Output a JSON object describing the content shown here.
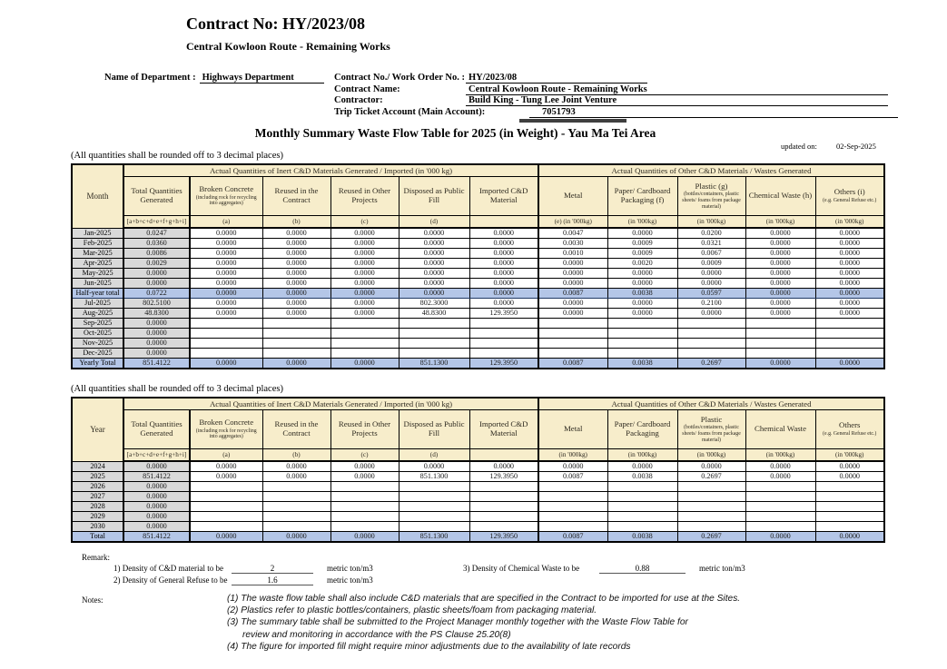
{
  "page": {
    "contract_title": "Contract No: HY/2023/08",
    "contract_subtitle": "Central Kowloon Route - Remaining Works",
    "main_title": "Monthly Summary Waste Flow Table for 2025 (in Weight) - Yau Ma Tei Area",
    "updated_on_label": "updated on:",
    "updated_on_value": "02-Sep-2025",
    "rounding_note": "(All quantities shall be rounded off to 3 decimal places)"
  },
  "form": {
    "department_label": "Name of Department :",
    "department_value": "Highways Department",
    "contract_no_label": "Contract No./ Work Order No. :",
    "contract_no_value": "HY/2023/08",
    "contract_name_label": "Contract Name:",
    "contract_name_value": "Central Kowloon Route - Remaining Works",
    "contractor_label": "Contractor:",
    "contractor_value": "Build King - Tung Lee Joint Venture",
    "trip_ticket_label": "Trip Ticket Account (Main Account):",
    "trip_ticket_value": "7051793"
  },
  "colors": {
    "header_fill": "#F7EDCB",
    "label_fill": "#D9D9D9",
    "total_fill": "#B4C6E7",
    "total_border": "#1F3864",
    "trip_bar": "#3f3f3f"
  },
  "table1": {
    "row_header": "Month",
    "group1": "Actual Quantities of Inert C&D Materials Generated / Imported (in '000 kg)",
    "group2": "Actual Quantities of Other C&D Materials / Wastes Generated",
    "columns": [
      {
        "title": "Total Quantities Generated",
        "foot": "[a+b+c+d+e+f+g+h+i]"
      },
      {
        "title": "Broken Concrete",
        "small": "(including rock for recycling into aggregates)",
        "foot": "(a)"
      },
      {
        "title": "Reused in the Contract",
        "foot": "(b)"
      },
      {
        "title": "Reused in Other Projects",
        "foot": "(c)"
      },
      {
        "title": "Disposed as Public Fill",
        "foot": "(d)"
      },
      {
        "title": "Imported C&D Material",
        "foot": ""
      },
      {
        "title": "Metal",
        "foot": "(e)  (in '000kg)"
      },
      {
        "title": "Paper/ Cardboard Packaging  (f)",
        "foot": "(in '000kg)"
      },
      {
        "title": "Plastic  (g)",
        "small": "(bottles/containers, plastic sheets/ foams from package material)",
        "foot": "(in '000kg)"
      },
      {
        "title": "Chemical Waste (h)",
        "foot": "(in '000kg)"
      },
      {
        "title": "Others (i)",
        "small": "(e.g. General Refuse etc.)",
        "foot": "(in '000kg)"
      }
    ],
    "rows": [
      {
        "label": "Jan-2025",
        "values": [
          "0.0247",
          "0.0000",
          "0.0000",
          "0.0000",
          "0.0000",
          "0.0000",
          "0.0047",
          "0.0000",
          "0.0200",
          "0.0000",
          "0.0000"
        ]
      },
      {
        "label": "Feb-2025",
        "values": [
          "0.0360",
          "0.0000",
          "0.0000",
          "0.0000",
          "0.0000",
          "0.0000",
          "0.0030",
          "0.0009",
          "0.0321",
          "0.0000",
          "0.0000"
        ]
      },
      {
        "label": "Mar-2025",
        "values": [
          "0.0086",
          "0.0000",
          "0.0000",
          "0.0000",
          "0.0000",
          "0.0000",
          "0.0010",
          "0.0009",
          "0.0067",
          "0.0000",
          "0.0000"
        ]
      },
      {
        "label": "Apr-2025",
        "values": [
          "0.0029",
          "0.0000",
          "0.0000",
          "0.0000",
          "0.0000",
          "0.0000",
          "0.0000",
          "0.0020",
          "0.0009",
          "0.0000",
          "0.0000"
        ]
      },
      {
        "label": "May-2025",
        "values": [
          "0.0000",
          "0.0000",
          "0.0000",
          "0.0000",
          "0.0000",
          "0.0000",
          "0.0000",
          "0.0000",
          "0.0000",
          "0.0000",
          "0.0000"
        ]
      },
      {
        "label": "Jun-2025",
        "values": [
          "0.0000",
          "0.0000",
          "0.0000",
          "0.0000",
          "0.0000",
          "0.0000",
          "0.0000",
          "0.0000",
          "0.0000",
          "0.0000",
          "0.0000"
        ]
      },
      {
        "label": "Half-year total",
        "total": true,
        "values": [
          "0.0722",
          "0.0000",
          "0.0000",
          "0.0000",
          "0.0000",
          "0.0000",
          "0.0087",
          "0.0038",
          "0.0597",
          "0.0000",
          "0.0000"
        ]
      },
      {
        "label": "Jul-2025",
        "values": [
          "802.5100",
          "0.0000",
          "0.0000",
          "0.0000",
          "802.3000",
          "0.0000",
          "0.0000",
          "0.0000",
          "0.2100",
          "0.0000",
          "0.0000"
        ]
      },
      {
        "label": "Aug-2025",
        "values": [
          "48.8300",
          "0.0000",
          "0.0000",
          "0.0000",
          "48.8300",
          "129.3950",
          "0.0000",
          "0.0000",
          "0.0000",
          "0.0000",
          "0.0000"
        ]
      },
      {
        "label": "Sep-2025",
        "values": [
          "0.0000",
          "",
          "",
          "",
          "",
          "",
          "",
          "",
          "",
          "",
          ""
        ]
      },
      {
        "label": "Oct-2025",
        "values": [
          "0.0000",
          "",
          "",
          "",
          "",
          "",
          "",
          "",
          "",
          "",
          ""
        ]
      },
      {
        "label": "Nov-2025",
        "values": [
          "0.0000",
          "",
          "",
          "",
          "",
          "",
          "",
          "",
          "",
          "",
          ""
        ]
      },
      {
        "label": "Dec-2025",
        "values": [
          "0.0000",
          "",
          "",
          "",
          "",
          "",
          "",
          "",
          "",
          "",
          ""
        ]
      },
      {
        "label": "Yearly Total",
        "total": true,
        "values": [
          "851.4122",
          "0.0000",
          "0.0000",
          "0.0000",
          "851.1300",
          "129.3950",
          "0.0087",
          "0.0038",
          "0.2697",
          "0.0000",
          "0.0000"
        ]
      }
    ]
  },
  "table2": {
    "row_header": "Year",
    "group1": "Actual Quantities of Inert C&D Materials Generated / Imported (in '000 kg)",
    "group2": "Actual Quantities of Other C&D Materials / Wastes Generated",
    "columns": [
      {
        "title": "Total Quantities Generated",
        "foot": "[a+b+c+d+e+f+g+h+i]"
      },
      {
        "title": "Broken Concrete",
        "small": "(including rock for recycling into aggregates)",
        "foot": "(a)"
      },
      {
        "title": "Reused in the Contract",
        "foot": "(b)"
      },
      {
        "title": "Reused in Other Projects",
        "foot": "(c)"
      },
      {
        "title": "Disposed as Public Fill",
        "foot": "(d)"
      },
      {
        "title": "Imported C&D Material",
        "foot": ""
      },
      {
        "title": "Metal",
        "foot": "(in '000kg)"
      },
      {
        "title": "Paper/ Cardboard Packaging",
        "foot": "(in '000kg)"
      },
      {
        "title": "Plastic",
        "small": "(bottles/containers, plastic sheets/ foams from package material)",
        "foot": "(in '000kg)"
      },
      {
        "title": "Chemical Waste",
        "foot": "(in '000kg)"
      },
      {
        "title": "Others",
        "small": "(e.g. General Refuse etc.)",
        "foot": "(in '000kg)"
      }
    ],
    "rows": [
      {
        "label": "2024",
        "values": [
          "0.0000",
          "0.0000",
          "0.0000",
          "0.0000",
          "0.0000",
          "0.0000",
          "0.0000",
          "0.0000",
          "0.0000",
          "0.0000",
          "0.0000"
        ]
      },
      {
        "label": "2025",
        "values": [
          "851.4122",
          "0.0000",
          "0.0000",
          "0.0000",
          "851.1300",
          "129.3950",
          "0.0087",
          "0.0038",
          "0.2697",
          "0.0000",
          "0.0000"
        ]
      },
      {
        "label": "2026",
        "values": [
          "0.0000",
          "",
          "",
          "",
          "",
          "",
          "",
          "",
          "",
          "",
          ""
        ]
      },
      {
        "label": "2027",
        "values": [
          "0.0000",
          "",
          "",
          "",
          "",
          "",
          "",
          "",
          "",
          "",
          ""
        ]
      },
      {
        "label": "2028",
        "values": [
          "0.0000",
          "",
          "",
          "",
          "",
          "",
          "",
          "",
          "",
          "",
          ""
        ]
      },
      {
        "label": "2029",
        "values": [
          "0.0000",
          "",
          "",
          "",
          "",
          "",
          "",
          "",
          "",
          "",
          ""
        ]
      },
      {
        "label": "2030",
        "values": [
          "0.0000",
          "",
          "",
          "",
          "",
          "",
          "",
          "",
          "",
          "",
          ""
        ]
      },
      {
        "label": "Total",
        "total": true,
        "values": [
          "851.4122",
          "0.0000",
          "0.0000",
          "0.0000",
          "851.1300",
          "129.3950",
          "0.0087",
          "0.0038",
          "0.2697",
          "0.0000",
          "0.0000"
        ]
      }
    ]
  },
  "remark": {
    "label": "Remark:",
    "items": [
      {
        "text": "1) Density of C&D material to be",
        "value": "2",
        "unit": "metric ton/m3"
      },
      {
        "text": "2) Density of General Refuse to be",
        "value": "1.6",
        "unit": "metric ton/m3"
      },
      {
        "text": "3) Density of Chemical Waste to be",
        "value": "0.88",
        "unit": "metric ton/m3"
      }
    ]
  },
  "notes": {
    "label": "Notes:",
    "items": [
      {
        "text": "(1) The waste flow table shall also include C&D materials that are specified in the Contract to be imported for use at the Sites."
      },
      {
        "text": "(2) Plastics refer to plastic bottles/containers, plastic sheets/foam from packaging material."
      },
      {
        "text": "(3) The summary table shall be submitted to the Project Manager monthly together with the Waste Flow Table for"
      },
      {
        "text": "review and monitoring in accordance with the PS Clause 25.20(8)",
        "indent": true
      },
      {
        "text": "(4) The figure for imported fill might require minor adjustments due to the availability of late records"
      }
    ]
  }
}
